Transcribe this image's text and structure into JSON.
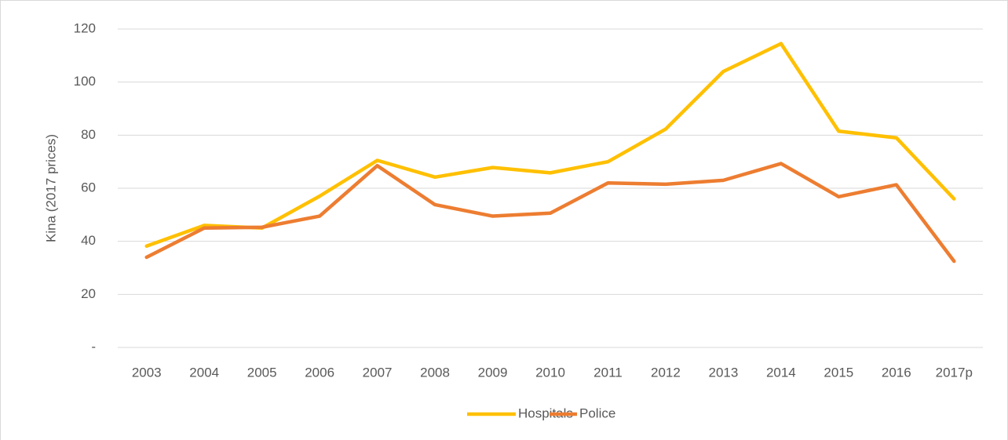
{
  "chart_data": {
    "type": "line",
    "y_label": "Kina (2017 prices)",
    "categories": [
      "2003",
      "2004",
      "2005",
      "2006",
      "2007",
      "2008",
      "2009",
      "2010",
      "2011",
      "2012",
      "2013",
      "2014",
      "2015",
      "2016",
      "2017p"
    ],
    "series": [
      {
        "name": "Hospitals",
        "color": "#ffc000",
        "values": [
          38.2,
          46,
          45,
          57,
          70.5,
          64.2,
          67.8,
          65.8,
          70,
          82.3,
          104,
          114.5,
          81.5,
          79,
          56
        ]
      },
      {
        "name": "Police",
        "color": "#ed7d31",
        "values": [
          34,
          45,
          45.3,
          49.5,
          68.5,
          53.8,
          49.5,
          50.6,
          62,
          61.5,
          63,
          69.3,
          56.8,
          61.3,
          32.5
        ]
      }
    ],
    "ylim": [
      0,
      120
    ],
    "yticks": [
      {
        "value": 0,
        "label": "-"
      },
      20,
      40,
      60,
      80,
      100,
      120
    ],
    "grid": true,
    "legend": "bottom"
  }
}
